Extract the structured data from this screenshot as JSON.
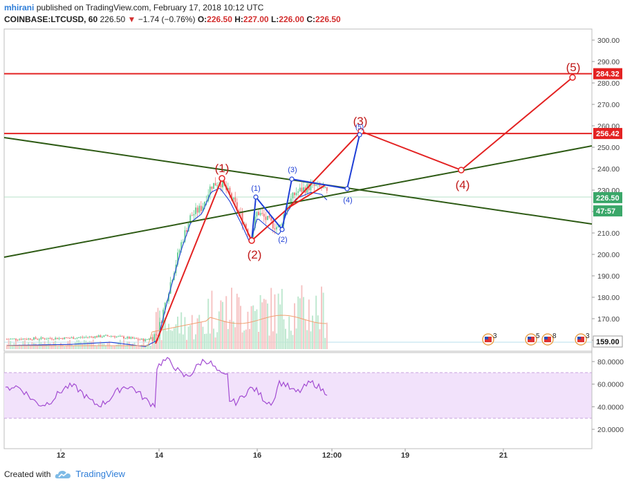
{
  "header": {
    "author": "mhirani",
    "published": "published on TradingView.com, February 17, 2018 10:12 UTC",
    "symbol": "COINBASE:LTCUSD, 60",
    "last": "226.50",
    "change": "−1.74 (−0.76%)",
    "o_label": "O:",
    "o": "226.50",
    "h_label": "H:",
    "h": "227.00",
    "l_label": "L:",
    "l": "226.00",
    "c_label": "C:",
    "c": "226.50"
  },
  "footer": {
    "created_with": "Created with",
    "brand": "TradingView"
  },
  "colors": {
    "up": "#6ccf9a",
    "down": "#f07c7c",
    "wave_red": "#e32222",
    "wave_blue": "#1f3fd6",
    "trend_green": "#2d5a14",
    "rsi_band": "#f2e2fb",
    "rsi_line": "#a24bd2"
  },
  "chart_data": {
    "type": "candlestick",
    "price_axis": {
      "min": 159,
      "max": 303,
      "ticks": [
        "300.00",
        "290.00",
        "280.00",
        "270.00",
        "260.00",
        "250.00",
        "240.00",
        "230.00",
        "220.00",
        "210.00",
        "200.00",
        "190.00",
        "180.00",
        "170.00",
        "160.00"
      ]
    },
    "price_labels": [
      {
        "value": 284.32,
        "text": "284.32",
        "color": "#e32222"
      },
      {
        "value": 256.42,
        "text": "256.42",
        "color": "#e32222"
      },
      {
        "value": 226.5,
        "text": "226.50",
        "color": "#3aa769"
      },
      {
        "value": 220.3,
        "text": "47:57",
        "color": "#3aa769"
      },
      {
        "value": 159.0,
        "text": "159.00",
        "color": "#ffffff"
      }
    ],
    "time_axis": {
      "labels": [
        "12",
        "14",
        "16",
        "12:00",
        "19",
        "21"
      ]
    },
    "horizontal_lines": [
      {
        "value": 284.32
      },
      {
        "value": 256.42
      }
    ],
    "wave_labels_major": [
      "(1)",
      "(2)",
      "(3)",
      "(4)",
      "(5)"
    ],
    "wave_labels_minor": [
      "(1)",
      "(2)",
      "(3)",
      "(4)",
      "(5)"
    ],
    "events": [
      "3",
      "5",
      "8",
      "3"
    ],
    "rsi_axis": {
      "ticks": [
        "80.0000",
        "60.0000",
        "40.0000",
        "20.0000"
      ],
      "band": [
        30,
        70
      ]
    }
  }
}
